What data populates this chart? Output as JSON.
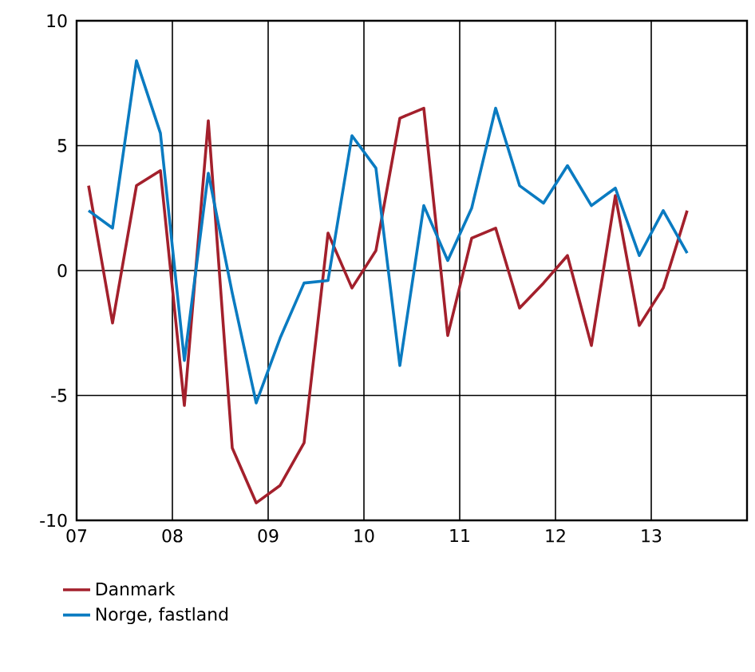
{
  "chart_data": {
    "type": "line",
    "x": [
      2007.125,
      2007.375,
      2007.625,
      2007.875,
      2008.125,
      2008.375,
      2008.625,
      2008.875,
      2009.125,
      2009.375,
      2009.625,
      2009.875,
      2010.125,
      2010.375,
      2010.625,
      2010.875,
      2011.125,
      2011.375,
      2011.625,
      2011.875,
      2012.125,
      2012.375,
      2012.625,
      2012.875,
      2013.125,
      2013.375
    ],
    "series": [
      {
        "name": "Danmark",
        "color": "#a3202c",
        "values": [
          3.4,
          -2.1,
          3.4,
          4.0,
          -5.4,
          6.0,
          -7.1,
          -9.3,
          -8.6,
          -6.9,
          1.5,
          -0.7,
          0.8,
          6.1,
          6.5,
          -2.6,
          1.3,
          1.7,
          -1.5,
          -0.5,
          0.6,
          -3.0,
          3.0,
          -2.2,
          -0.7,
          2.4
        ]
      },
      {
        "name": "Norge, fastland",
        "color": "#0a7bc1",
        "values": [
          2.4,
          1.7,
          8.4,
          5.5,
          -3.6,
          3.9,
          -0.9,
          -5.3,
          -2.7,
          -0.5,
          -0.4,
          5.4,
          4.1,
          -3.8,
          2.6,
          0.4,
          2.5,
          6.5,
          3.4,
          2.7,
          4.2,
          2.6,
          3.3,
          0.6,
          2.4,
          0.7
        ]
      }
    ],
    "xlim": [
      2007,
      2014
    ],
    "xticks": [
      {
        "value": 2007,
        "label": "07"
      },
      {
        "value": 2008,
        "label": "08"
      },
      {
        "value": 2009,
        "label": "09"
      },
      {
        "value": 2010,
        "label": "10"
      },
      {
        "value": 2011,
        "label": "11"
      },
      {
        "value": 2012,
        "label": "12"
      },
      {
        "value": 2013,
        "label": "13"
      }
    ],
    "ylim": [
      -10,
      10
    ],
    "yticks": [
      -10,
      -5,
      0,
      5,
      10
    ],
    "grid": true,
    "legend": "bottom left"
  }
}
